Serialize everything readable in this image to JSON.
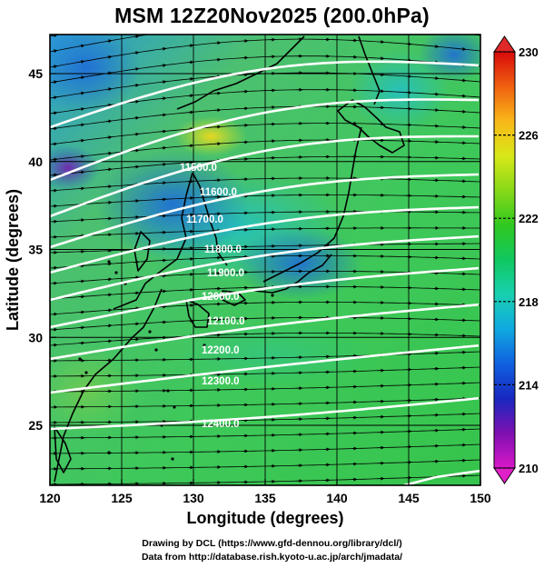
{
  "title": "MSM 12Z20Nov2025 (200.0hPa)",
  "xaxis": {
    "label": "Longitude (degrees)",
    "ticks": [
      "120",
      "125",
      "130",
      "135",
      "140",
      "145",
      "150"
    ]
  },
  "yaxis": {
    "label": "Latitude  (degrees)",
    "ticks": [
      "25",
      "30",
      "35",
      "40",
      "45"
    ]
  },
  "colorbar": {
    "labels": [
      "230",
      "226",
      "222",
      "218",
      "214",
      "210"
    ],
    "colors": [
      "#d80a0a",
      "#f06010",
      "#f8b818",
      "#d8e818",
      "#88d818",
      "#30c820",
      "#10c860",
      "#18d0b0",
      "#10a8e0",
      "#1060e0",
      "#1828c0",
      "#8010b0",
      "#d818c8"
    ]
  },
  "contours": [
    {
      "label": "11500.0"
    },
    {
      "label": "11600.0"
    },
    {
      "label": "11700.0"
    },
    {
      "label": "11800.0"
    },
    {
      "label": "11900.0"
    },
    {
      "label": "12000.0"
    },
    {
      "label": "12100.0"
    },
    {
      "label": "12200.0"
    },
    {
      "label": "12300.0"
    },
    {
      "label": "12400.0"
    }
  ],
  "credits": {
    "line1": "Drawing by DCL (https://www.gfd-dennou.org/library/dcl/)",
    "line2": "Data from http://database.rish.kyoto-u.ac.jp/arch/jmadata/"
  }
}
